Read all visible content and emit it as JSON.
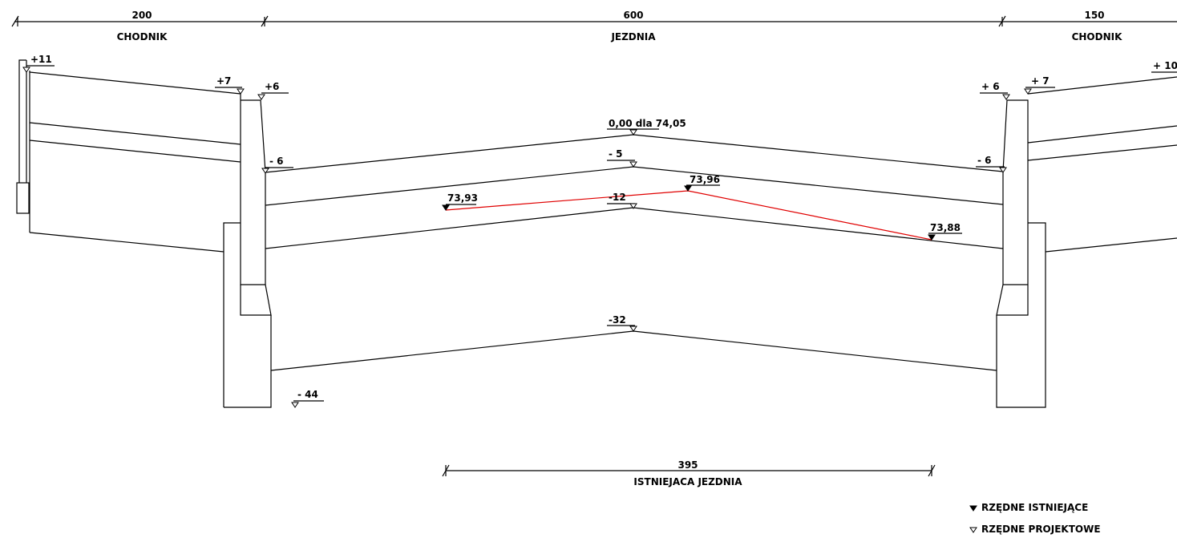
{
  "dimensions": {
    "left_sidewalk": {
      "value": "200",
      "label": "CHODNIK"
    },
    "roadway": {
      "value": "600",
      "label": "JEZDNIA"
    },
    "right_sidewalk": {
      "value": "150",
      "label": "CHODNIK"
    },
    "existing_roadway": {
      "value": "395",
      "label": "ISTNIEJACA JEZDNIA"
    }
  },
  "design_levels": {
    "left_edge": "+11",
    "left_curb_back": "+7",
    "left_curb_front": "+6",
    "left_road_edge": "- 6",
    "crown": "0,00 dla 74,05",
    "crown_layer1": "- 5",
    "crown_layer2": "-12",
    "crown_layer3": "-32",
    "foundation": "- 44",
    "right_curb_front": "+ 6",
    "right_curb_back": "+ 7",
    "right_road_edge": "- 6",
    "right_edge": "+ 10"
  },
  "existing_levels": {
    "left": "73,93",
    "middle": "73,96",
    "right": "73,88"
  },
  "legend": {
    "existing": "RZĘDNE ISTNIEJĄCE",
    "design": "RZĘDNE PROJEKTOWE"
  },
  "colors": {
    "lines": "#000000",
    "existing_profile": "#e00000",
    "background": "#ffffff"
  }
}
